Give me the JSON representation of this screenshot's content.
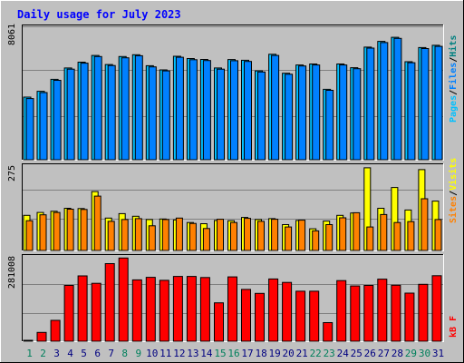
{
  "chart_data": {
    "type": "bar",
    "title": "Daily usage for July 2023",
    "categories": [
      "1",
      "2",
      "3",
      "4",
      "5",
      "6",
      "7",
      "8",
      "9",
      "10",
      "11",
      "12",
      "13",
      "14",
      "15",
      "16",
      "17",
      "18",
      "19",
      "20",
      "21",
      "22",
      "23",
      "24",
      "25",
      "26",
      "27",
      "28",
      "29",
      "30",
      "31"
    ],
    "weekend_days": [
      "1",
      "2",
      "8",
      "9",
      "15",
      "16",
      "22",
      "23",
      "29",
      "30"
    ],
    "panels": [
      {
        "name": "pages-files-hits",
        "ylabel_tick": "8061",
        "ylim": [
          0,
          9400
        ],
        "legend": [
          "Pages",
          "/",
          "Files",
          "/",
          "Hits"
        ],
        "series": [
          {
            "name": "Hits",
            "color": "#00c0ff",
            "values": [
              4380,
              4790,
              5630,
              6420,
              6830,
              7300,
              6660,
              7220,
              7350,
              6580,
              6290,
              7240,
              7080,
              7020,
              6420,
              7010,
              6960,
              6220,
              7380,
              6050,
              6630,
              6700,
              4930,
              6700,
              6440,
              7880,
              8280,
              8570,
              6860,
              7850,
              8010
            ]
          },
          {
            "name": "Files",
            "color": "#0080ff",
            "values": [
              4280,
              4700,
              5560,
              6340,
              6760,
              7220,
              6590,
              7130,
              7280,
              6500,
              6220,
              7170,
              7000,
              6940,
              6340,
              6930,
              6880,
              6140,
              7300,
              5980,
              6560,
              6630,
              4860,
              6630,
              6370,
              7810,
              8200,
              8490,
              6790,
              7780,
              7930
            ]
          },
          {
            "name": "Pages",
            "color": "#008080",
            "values": [
              0,
              0,
              0,
              0,
              0,
              0,
              0,
              0,
              0,
              0,
              0,
              0,
              0,
              0,
              0,
              0,
              0,
              0,
              0,
              0,
              0,
              0,
              0,
              0,
              0,
              0,
              0,
              0,
              0,
              0,
              0
            ]
          }
        ]
      },
      {
        "name": "sites-visits",
        "ylabel_tick": "275",
        "ylim": [
          0,
          290
        ],
        "legend": [
          "Sites",
          "/",
          "Visits"
        ],
        "series": [
          {
            "name": "Visits",
            "color": "#ffff00",
            "values": [
              118,
              128,
              132,
              142,
              141,
              198,
              109,
              124,
              115,
              104,
              106,
              103,
              94,
              90,
              101,
              100,
              111,
              104,
              107,
              87,
              101,
              73,
              99,
              118,
              126,
              278,
              142,
              212,
              136,
              272,
              166
            ]
          },
          {
            "name": "Sites",
            "color": "#ff8000",
            "values": [
              100,
              120,
              128,
              139,
              138,
              183,
              98,
              104,
              107,
              83,
              104,
              109,
              91,
              74,
              105,
              94,
              108,
              98,
              105,
              79,
              102,
              66,
              87,
              110,
              127,
              79,
              121,
              94,
              97,
              174,
              104
            ]
          }
        ]
      },
      {
        "name": "kbytes",
        "ylabel_tick": "281008",
        "ylim": [
          0,
          371000
        ],
        "legend": [
          "kB",
          " ",
          "F"
        ],
        "series": [
          {
            "name": "kB F",
            "color": "#ff0000",
            "values": [
              3000,
              38000,
              90000,
              240000,
              281008,
              249000,
              334000,
              358000,
              264000,
              275000,
              262000,
              279000,
              279000,
              274000,
              165000,
              277000,
              223000,
              206000,
              268000,
              253000,
              215000,
              215000,
              80000,
              261000,
              238000,
              240000,
              267000,
              241000,
              207000,
              245000,
              282000
            ]
          }
        ]
      }
    ],
    "colors": {
      "weekday_label": "#000080",
      "weekend_label": "#00805c",
      "title": "#0000ff",
      "grid": "#808080",
      "panel_bg": "#c0c0c0",
      "frame_bg": "#c0c0c0"
    }
  }
}
